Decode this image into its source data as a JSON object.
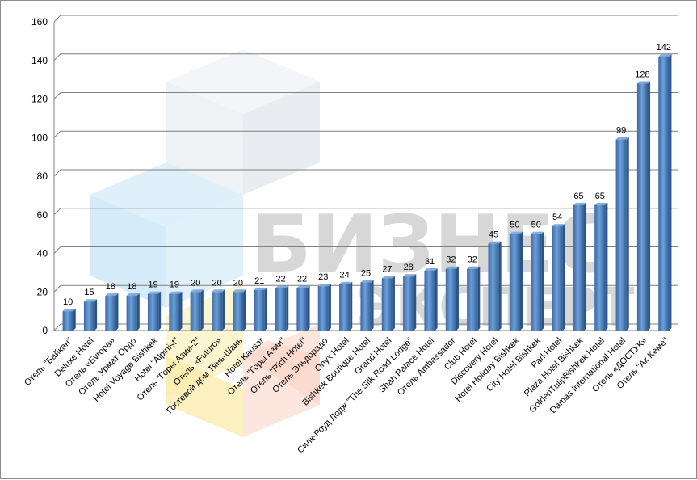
{
  "chart_data": {
    "type": "bar",
    "title": "",
    "xlabel": "",
    "ylabel": "",
    "ylim": [
      0,
      160
    ],
    "yticks": [
      0,
      20,
      40,
      60,
      80,
      100,
      120,
      140,
      160
    ],
    "grid": true,
    "bar_color": "#4f81bd",
    "categories": [
      "Отель \"Байкан\"",
      "Deluxe Hotel",
      "Отель «Evropa»",
      "Отель Урмат Ордо",
      "Hotel Voyage Bishkek",
      "Hotel \"Alpinist\"",
      "Отель \"Горы Азии-2\"",
      "Отель «Futuro»",
      "Гостевой дом Тянь-Шань",
      "Hotel Kausar",
      "Отель \"Горы Азии\"",
      "Отель \"Rich Hotel\"",
      "Отель Эльдорадо",
      "Onyx Hotel",
      "Bishkek Boutique Hotel",
      "Grand Hotel",
      "Силк-Роуд Лодж \"The Silk Road Lodge\"",
      "Shah Palace Hotel",
      "Отель Ambassador",
      "Club Hotel",
      "Discovery Hotel",
      "Hotel Holiday Bishkek",
      "City Hotel Bishkek",
      "ParkHotel",
      "Plaza Hotel Bishkek",
      "GoldenTulipBishkek Hotel",
      "Damas International Hotel",
      "Отель «ДОСТУК»",
      "Отель \"Ак Keме\""
    ],
    "values": [
      10,
      15,
      18,
      18,
      19,
      19,
      20,
      20,
      20,
      21,
      22,
      22,
      23,
      24,
      25,
      27,
      28,
      31,
      32,
      32,
      45,
      50,
      50,
      54,
      65,
      65,
      99,
      128,
      142
    ]
  },
  "watermark": {
    "line1": "БИЗНЕС",
    "line2": "ЭКСПЕРТ"
  }
}
